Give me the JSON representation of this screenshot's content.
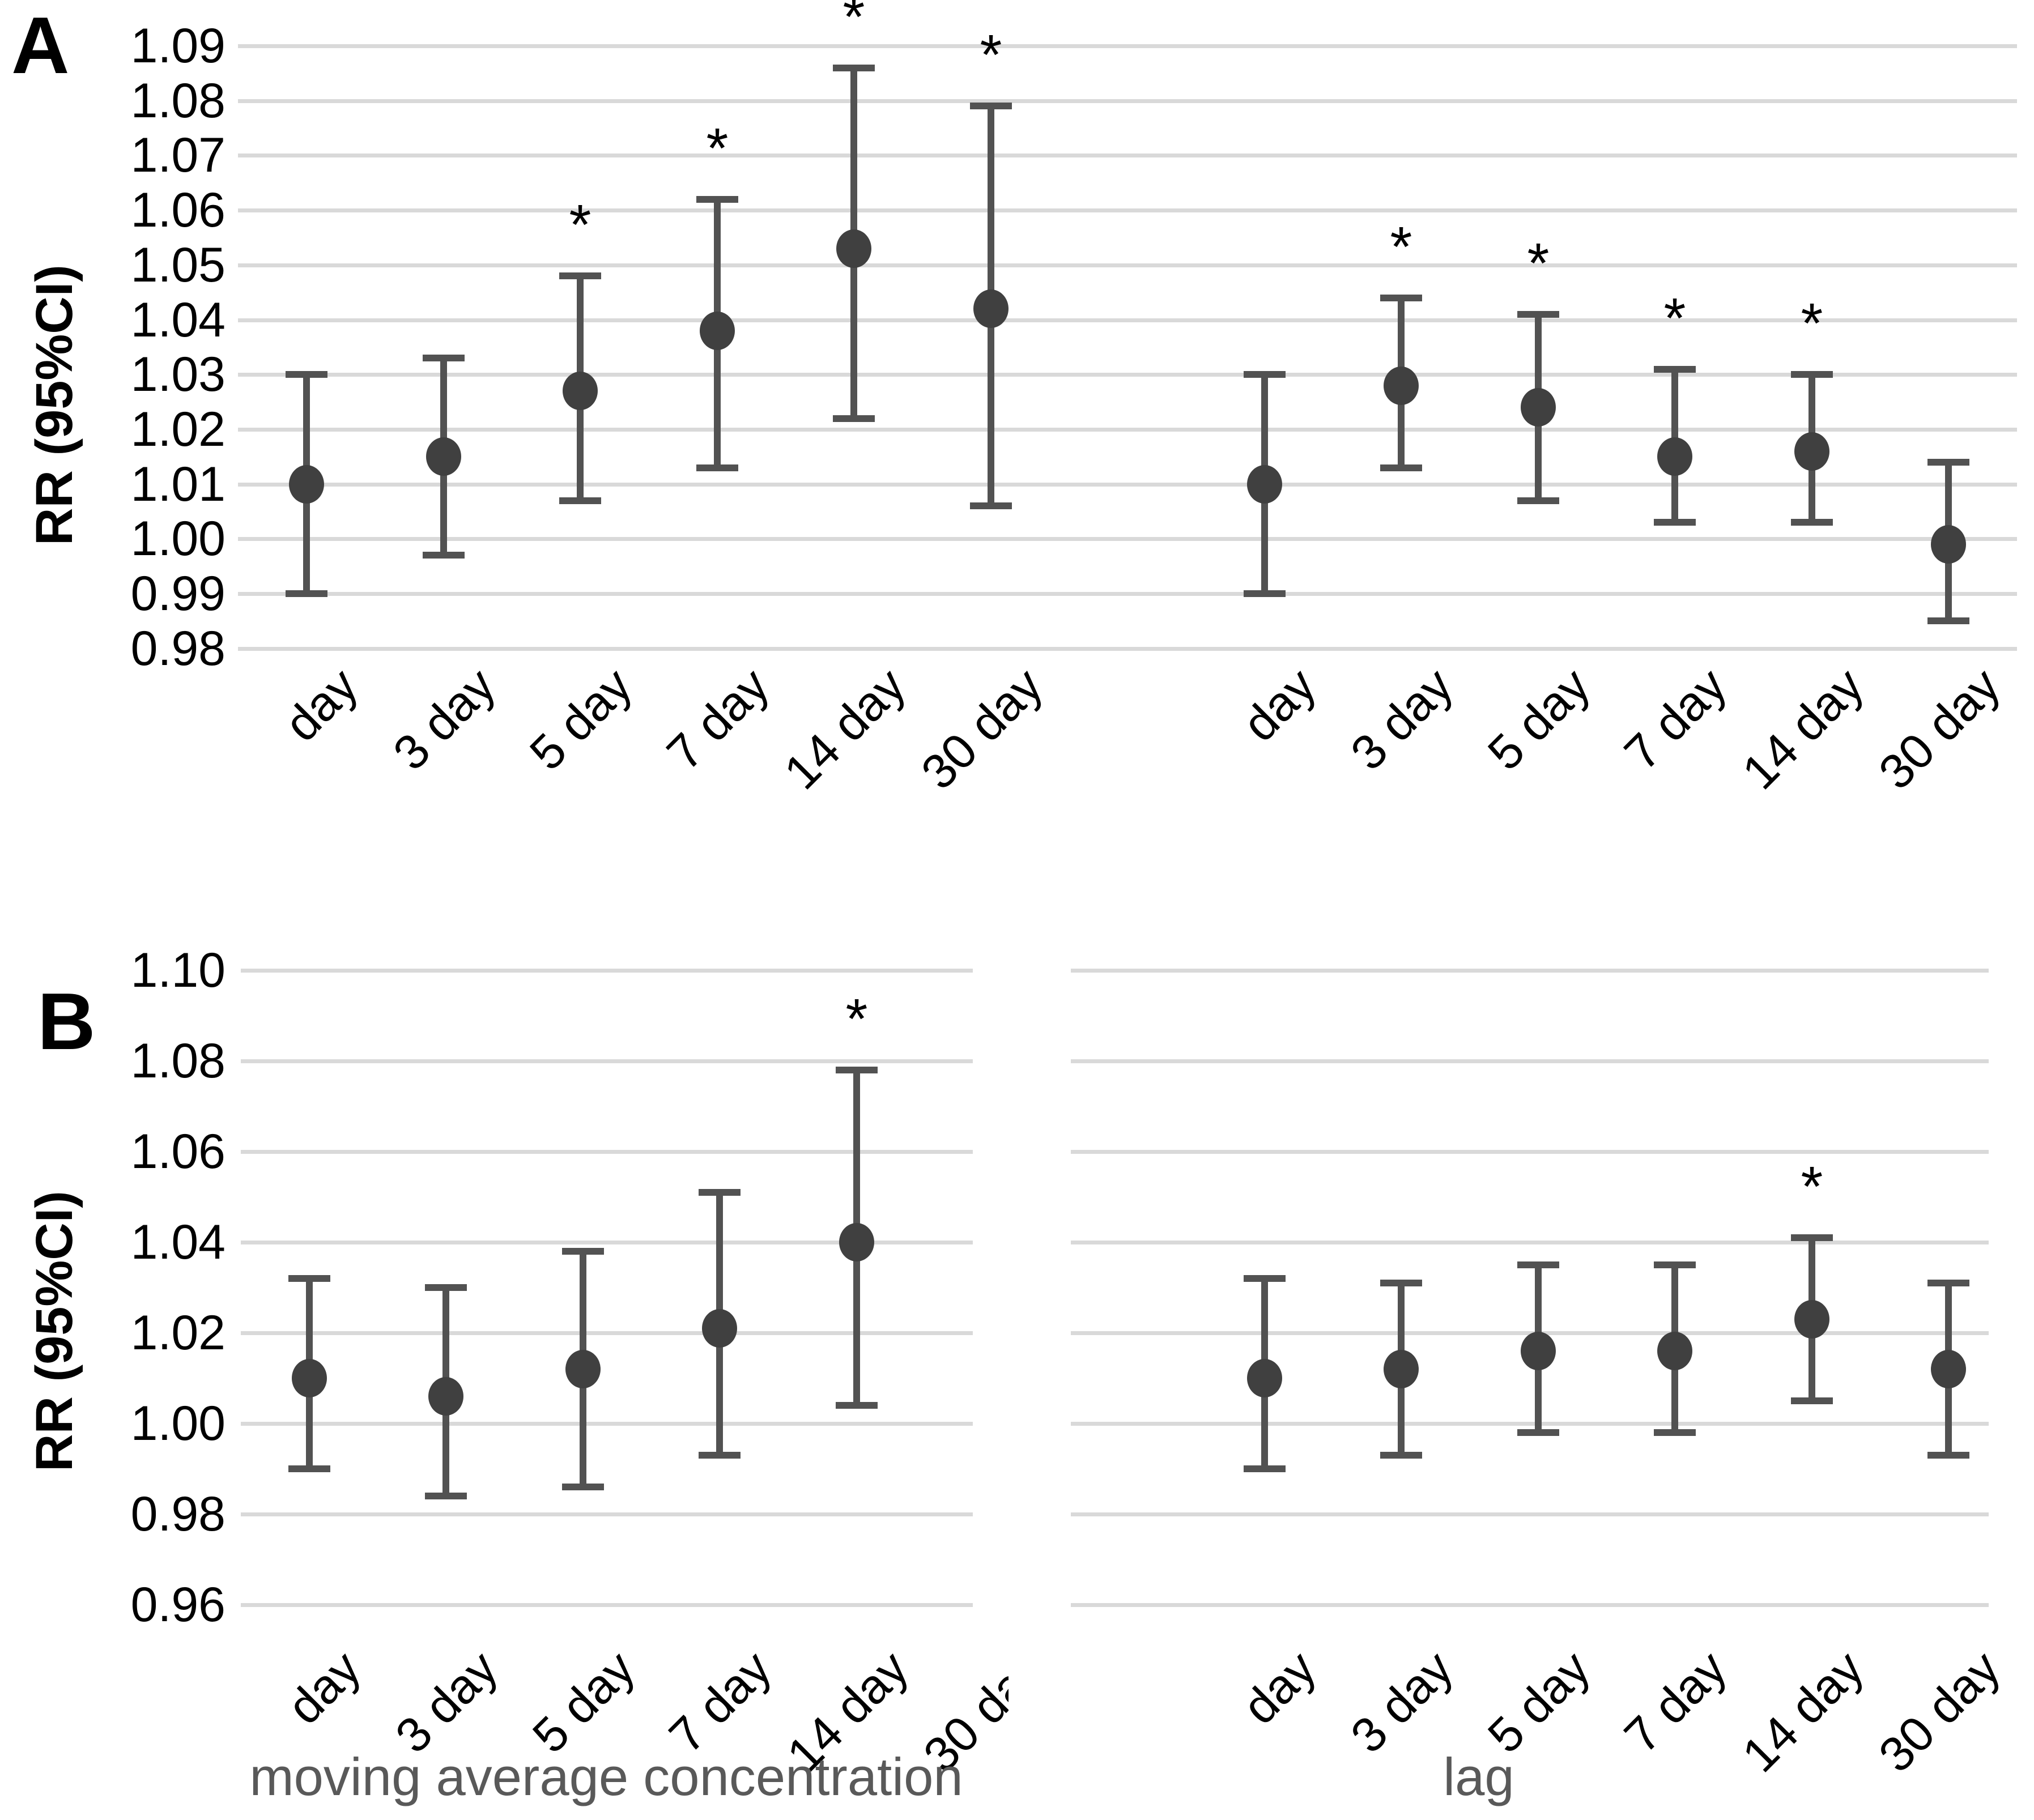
{
  "significance_marker": "*",
  "colors": {
    "marker": "#404040",
    "error_bar": "#525252",
    "gridline": "#d9d9d9",
    "axis_title": "#595959",
    "text": "#000000"
  },
  "chart_data": [
    {
      "type": "scatter",
      "panel": "A",
      "title": "",
      "xlabel": "",
      "ylabel": "RR (95%CI)",
      "ylim": [
        0.98,
        1.09
      ],
      "ytick_interval": 0.01,
      "yticks": [
        "1.09",
        "1.08",
        "1.07",
        "1.06",
        "1.05",
        "1.04",
        "1.03",
        "1.02",
        "1.01",
        "1.00",
        "0.99",
        "0.98"
      ],
      "grid": true,
      "legend": "none",
      "error_bars": "95% CI",
      "categories": [
        "day",
        "3 day",
        "5 day",
        "7 day",
        "14 day",
        "30 day"
      ],
      "series": [
        {
          "name": "moving average concentration",
          "points": [
            {
              "category": "day",
              "rr": 1.01,
              "ci_low": 0.99,
              "ci_high": 1.03,
              "significant": false
            },
            {
              "category": "3 day",
              "rr": 1.015,
              "ci_low": 0.997,
              "ci_high": 1.033,
              "significant": false
            },
            {
              "category": "5 day",
              "rr": 1.027,
              "ci_low": 1.007,
              "ci_high": 1.048,
              "significant": true
            },
            {
              "category": "7 day",
              "rr": 1.038,
              "ci_low": 1.013,
              "ci_high": 1.062,
              "significant": true
            },
            {
              "category": "14 day",
              "rr": 1.053,
              "ci_low": 1.022,
              "ci_high": 1.086,
              "significant": true
            },
            {
              "category": "30 day",
              "rr": 1.042,
              "ci_low": 1.006,
              "ci_high": 1.079,
              "significant": true
            }
          ]
        },
        {
          "name": "lag",
          "points": [
            {
              "category": "day",
              "rr": 1.01,
              "ci_low": 0.99,
              "ci_high": 1.03,
              "significant": false
            },
            {
              "category": "3 day",
              "rr": 1.028,
              "ci_low": 1.013,
              "ci_high": 1.044,
              "significant": true
            },
            {
              "category": "5 day",
              "rr": 1.024,
              "ci_low": 1.007,
              "ci_high": 1.041,
              "significant": true
            },
            {
              "category": "7 day",
              "rr": 1.015,
              "ci_low": 1.003,
              "ci_high": 1.031,
              "significant": true
            },
            {
              "category": "14 day",
              "rr": 1.016,
              "ci_low": 1.003,
              "ci_high": 1.03,
              "significant": true
            },
            {
              "category": "30 day",
              "rr": 0.999,
              "ci_low": 0.985,
              "ci_high": 1.014,
              "significant": false
            }
          ]
        }
      ]
    },
    {
      "type": "scatter",
      "panel": "B",
      "title": "",
      "xlabel_left": "moving average concentration",
      "xlabel_right": "lag",
      "ylabel": "RR (95%CI)",
      "ylim": [
        0.96,
        1.1
      ],
      "ytick_interval": 0.02,
      "yticks": [
        "1.10",
        "1.08",
        "1.06",
        "1.04",
        "1.02",
        "1.00",
        "0.98",
        "0.96"
      ],
      "grid": true,
      "legend": "none",
      "error_bars": "95% CI",
      "categories": [
        "day",
        "3 day",
        "5 day",
        "7 day",
        "14 day",
        "30 day"
      ],
      "series": [
        {
          "name": "moving average concentration",
          "points": [
            {
              "category": "day",
              "rr": 1.01,
              "ci_low": 0.99,
              "ci_high": 1.032,
              "significant": false
            },
            {
              "category": "3 day",
              "rr": 1.006,
              "ci_low": 0.984,
              "ci_high": 1.03,
              "significant": false
            },
            {
              "category": "5 day",
              "rr": 1.012,
              "ci_low": 0.986,
              "ci_high": 1.038,
              "significant": false
            },
            {
              "category": "7 day",
              "rr": 1.021,
              "ci_low": 0.993,
              "ci_high": 1.051,
              "significant": false
            },
            {
              "category": "14 day",
              "rr": 1.04,
              "ci_low": 1.004,
              "ci_high": 1.078,
              "significant": true
            }
          ]
        },
        {
          "name": "lag",
          "points": [
            {
              "category": "day",
              "rr": 1.01,
              "ci_low": 0.99,
              "ci_high": 1.032,
              "significant": false
            },
            {
              "category": "3 day",
              "rr": 1.012,
              "ci_low": 0.993,
              "ci_high": 1.031,
              "significant": false
            },
            {
              "category": "5 day",
              "rr": 1.016,
              "ci_low": 0.998,
              "ci_high": 1.035,
              "significant": false
            },
            {
              "category": "7 day",
              "rr": 1.016,
              "ci_low": 0.998,
              "ci_high": 1.035,
              "significant": false
            },
            {
              "category": "14 day",
              "rr": 1.023,
              "ci_low": 1.005,
              "ci_high": 1.041,
              "significant": true
            },
            {
              "category": "30 day",
              "rr": 1.012,
              "ci_low": 0.993,
              "ci_high": 1.031,
              "significant": false
            }
          ]
        }
      ]
    }
  ]
}
